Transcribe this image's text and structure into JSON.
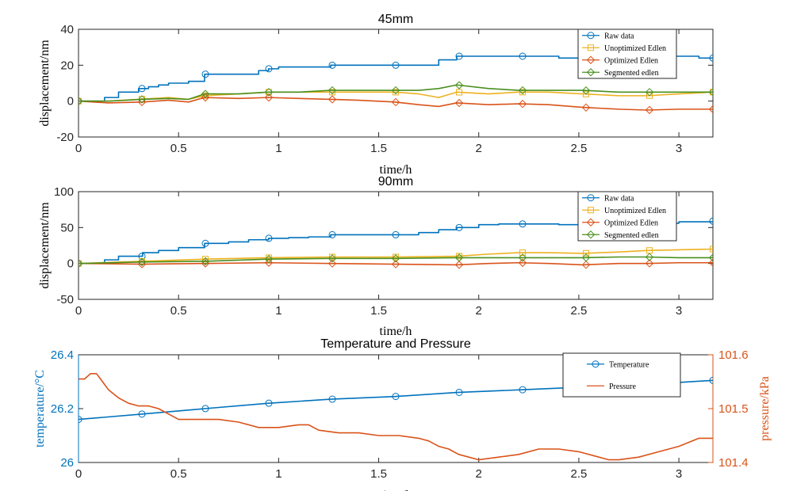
{
  "chart_data": [
    {
      "type": "line",
      "title": "45mm",
      "xlabel": "time/h",
      "ylabel": "displacement/nm",
      "xlim": [
        0,
        3.17
      ],
      "ylim": [
        -20,
        40
      ],
      "xticks": [
        "0",
        "0.5",
        "1",
        "1.5",
        "2",
        "2.5",
        "3"
      ],
      "yticks": [
        "-20",
        "0",
        "20",
        "40"
      ],
      "legend_position": "top-right",
      "series": [
        {
          "name": "Raw data",
          "color": "#0072BD",
          "marker": "circle",
          "step": true,
          "x": [
            0,
            0.1,
            0.13,
            0.2,
            0.3,
            0.35,
            0.4,
            0.45,
            0.5,
            0.55,
            0.63,
            0.7,
            0.8,
            0.87,
            0.9,
            0.95,
            1.0,
            1.1,
            1.2,
            1.26,
            1.3,
            1.4,
            1.5,
            1.58,
            1.7,
            1.78,
            1.8,
            1.89,
            2.0,
            2.2,
            2.4,
            2.5,
            2.6,
            2.8,
            3.0,
            3.1,
            3.17
          ],
          "y": [
            0,
            0,
            2,
            5,
            7,
            8,
            9,
            10,
            10,
            11,
            15,
            15,
            15,
            15,
            17,
            18,
            19,
            19,
            19,
            20,
            20,
            20,
            20,
            20,
            20,
            20,
            23,
            25,
            25,
            25,
            24,
            25,
            24,
            25,
            25,
            24,
            24
          ]
        },
        {
          "name": "Unoptimized Edlen",
          "color": "#EDB120",
          "marker": "square",
          "x": [
            0,
            0.15,
            0.3,
            0.45,
            0.55,
            0.63,
            0.8,
            0.95,
            1.1,
            1.26,
            1.4,
            1.58,
            1.7,
            1.8,
            1.89,
            2.05,
            2.2,
            2.35,
            2.52,
            2.7,
            2.84,
            3.0,
            3.17
          ],
          "y": [
            0,
            0,
            1,
            2,
            1,
            3,
            4,
            5,
            5,
            5,
            5,
            5,
            4,
            2,
            5,
            4,
            5,
            5,
            4,
            3,
            3,
            4,
            5
          ]
        },
        {
          "name": "Optimized Edlen",
          "color": "#D95319",
          "marker": "diamond",
          "x": [
            0,
            0.15,
            0.32,
            0.45,
            0.55,
            0.63,
            0.8,
            0.95,
            1.1,
            1.26,
            1.4,
            1.58,
            1.7,
            1.8,
            1.89,
            2.05,
            2.2,
            2.35,
            2.52,
            2.7,
            2.84,
            3.0,
            3.17
          ],
          "y": [
            0,
            -1,
            -0.5,
            0.5,
            -0.5,
            2,
            1.5,
            2,
            1.5,
            1,
            0.5,
            -0.5,
            -2,
            -3,
            -1,
            -2,
            -1.5,
            -2,
            -3.5,
            -4.5,
            -5,
            -4.5,
            -4.5
          ]
        },
        {
          "name": "Segmented edlen",
          "color": "#4A8F1E",
          "marker": "diamond",
          "x": [
            0,
            0.15,
            0.32,
            0.45,
            0.55,
            0.63,
            0.8,
            0.95,
            1.1,
            1.26,
            1.4,
            1.58,
            1.7,
            1.8,
            1.89,
            2.05,
            2.2,
            2.35,
            2.52,
            2.7,
            2.84,
            3.0,
            3.17
          ],
          "y": [
            0,
            0,
            1,
            1.5,
            1,
            4,
            4,
            5,
            5,
            6,
            6,
            6,
            6,
            7,
            9,
            7,
            6,
            6,
            6,
            5,
            5,
            5,
            5
          ]
        }
      ]
    },
    {
      "type": "line",
      "title": "90mm",
      "xlabel": "time/h",
      "ylabel": "displacement/nm",
      "xlim": [
        0,
        3.17
      ],
      "ylim": [
        -50,
        100
      ],
      "xticks": [
        "0",
        "0.5",
        "1",
        "1.5",
        "2",
        "2.5",
        "3"
      ],
      "yticks": [
        "-50",
        "0",
        "50",
        "100"
      ],
      "legend_position": "top-right",
      "series": [
        {
          "name": "Raw data",
          "color": "#0072BD",
          "marker": "circle",
          "step": true,
          "x": [
            0,
            0.1,
            0.13,
            0.2,
            0.32,
            0.4,
            0.5,
            0.63,
            0.75,
            0.85,
            0.95,
            1.05,
            1.15,
            1.26,
            1.4,
            1.58,
            1.7,
            1.8,
            1.89,
            2.0,
            2.1,
            2.2,
            2.4,
            2.52,
            2.7,
            2.84,
            3.0,
            3.17
          ],
          "y": [
            0,
            0,
            5,
            10,
            15,
            18,
            22,
            28,
            30,
            33,
            35,
            36,
            37,
            40,
            40,
            40,
            43,
            47,
            50,
            54,
            55,
            55,
            54,
            55,
            56,
            56,
            58,
            59
          ]
        },
        {
          "name": "Unoptimized Edlen",
          "color": "#EDB120",
          "marker": "square",
          "x": [
            0,
            0.32,
            0.63,
            0.95,
            1.26,
            1.58,
            1.89,
            2.05,
            2.2,
            2.35,
            2.52,
            2.7,
            2.84,
            3.0,
            3.17
          ],
          "y": [
            0,
            3,
            6,
            8,
            9,
            9,
            10,
            13,
            15,
            15,
            14,
            16,
            18,
            19,
            20
          ]
        },
        {
          "name": "Optimized Edlen",
          "color": "#D95319",
          "marker": "diamond",
          "x": [
            0,
            0.32,
            0.63,
            0.95,
            1.26,
            1.58,
            1.89,
            2.05,
            2.2,
            2.35,
            2.52,
            2.7,
            2.84,
            3.0,
            3.17
          ],
          "y": [
            0,
            -1,
            0,
            1,
            0,
            -1,
            -2,
            0,
            1,
            0,
            -2,
            0,
            0,
            1,
            1
          ]
        },
        {
          "name": "Segmented edlen",
          "color": "#4A8F1E",
          "marker": "diamond",
          "x": [
            0,
            0.32,
            0.63,
            0.95,
            1.26,
            1.58,
            1.89,
            2.05,
            2.2,
            2.35,
            2.52,
            2.7,
            2.84,
            3.0,
            3.17
          ],
          "y": [
            0,
            2,
            3,
            6,
            7,
            7,
            8,
            8,
            8,
            8,
            8,
            9,
            9,
            8,
            8
          ]
        }
      ]
    },
    {
      "type": "line",
      "title": "Temperature and Pressure",
      "xlabel": "time/h",
      "ylabel": "temperature/°C",
      "ylabel_right": "pressure/kPa",
      "xlim": [
        0,
        3.17
      ],
      "ylim": [
        26,
        26.4
      ],
      "ylim_right": [
        101.4,
        101.6
      ],
      "xticks": [
        "0",
        "0.5",
        "1",
        "1.5",
        "2",
        "2.5",
        "3"
      ],
      "yticks": [
        "26",
        "26.2",
        "26.4"
      ],
      "yticks_right": [
        "101.4",
        "101.5",
        "101.6"
      ],
      "left_axis_color": "#0072BD",
      "right_axis_color": "#D95319",
      "legend_position": "top-right",
      "series": [
        {
          "name": "Temperature",
          "color": "#0072BD",
          "marker": "circle",
          "axis": "left",
          "x": [
            0,
            0.32,
            0.63,
            0.95,
            1.26,
            1.58,
            1.89,
            2.21,
            2.52,
            2.84,
            3.17
          ],
          "y": [
            26.16,
            26.18,
            26.2,
            26.22,
            26.235,
            26.245,
            26.26,
            26.27,
            26.28,
            26.29,
            26.305
          ]
        },
        {
          "name": "Pressure",
          "color": "#D95319",
          "marker": "none",
          "axis": "right",
          "x": [
            0,
            0.03,
            0.06,
            0.09,
            0.12,
            0.15,
            0.2,
            0.25,
            0.3,
            0.35,
            0.4,
            0.45,
            0.5,
            0.55,
            0.6,
            0.7,
            0.8,
            0.9,
            1.0,
            1.1,
            1.15,
            1.2,
            1.3,
            1.4,
            1.5,
            1.6,
            1.7,
            1.75,
            1.8,
            1.85,
            1.9,
            1.95,
            2.0,
            2.1,
            2.2,
            2.3,
            2.4,
            2.5,
            2.6,
            2.65,
            2.7,
            2.8,
            2.9,
            3.0,
            3.1,
            3.17
          ],
          "y": [
            101.555,
            101.555,
            101.565,
            101.565,
            101.55,
            101.535,
            101.52,
            101.51,
            101.505,
            101.505,
            101.5,
            101.49,
            101.48,
            101.48,
            101.48,
            101.48,
            101.475,
            101.465,
            101.465,
            101.47,
            101.47,
            101.46,
            101.455,
            101.455,
            101.45,
            101.45,
            101.445,
            101.44,
            101.43,
            101.425,
            101.415,
            101.41,
            101.405,
            101.41,
            101.415,
            101.425,
            101.425,
            101.42,
            101.41,
            101.405,
            101.405,
            101.41,
            101.42,
            101.43,
            101.445,
            101.445
          ]
        }
      ]
    }
  ]
}
